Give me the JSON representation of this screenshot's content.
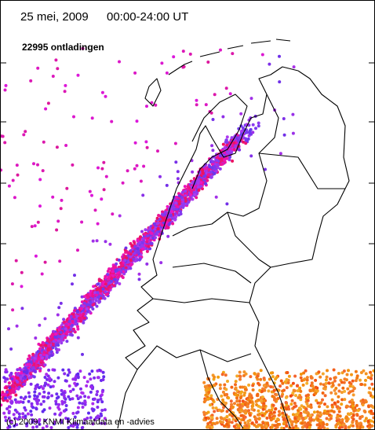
{
  "header": {
    "date": "25 mei, 2009",
    "time": "00:00-24:00 UT",
    "count": "22995 ontladingen"
  },
  "footer": {
    "copyright": "(c) 2009, KNMI Klimaatdata en -advies"
  }
}
